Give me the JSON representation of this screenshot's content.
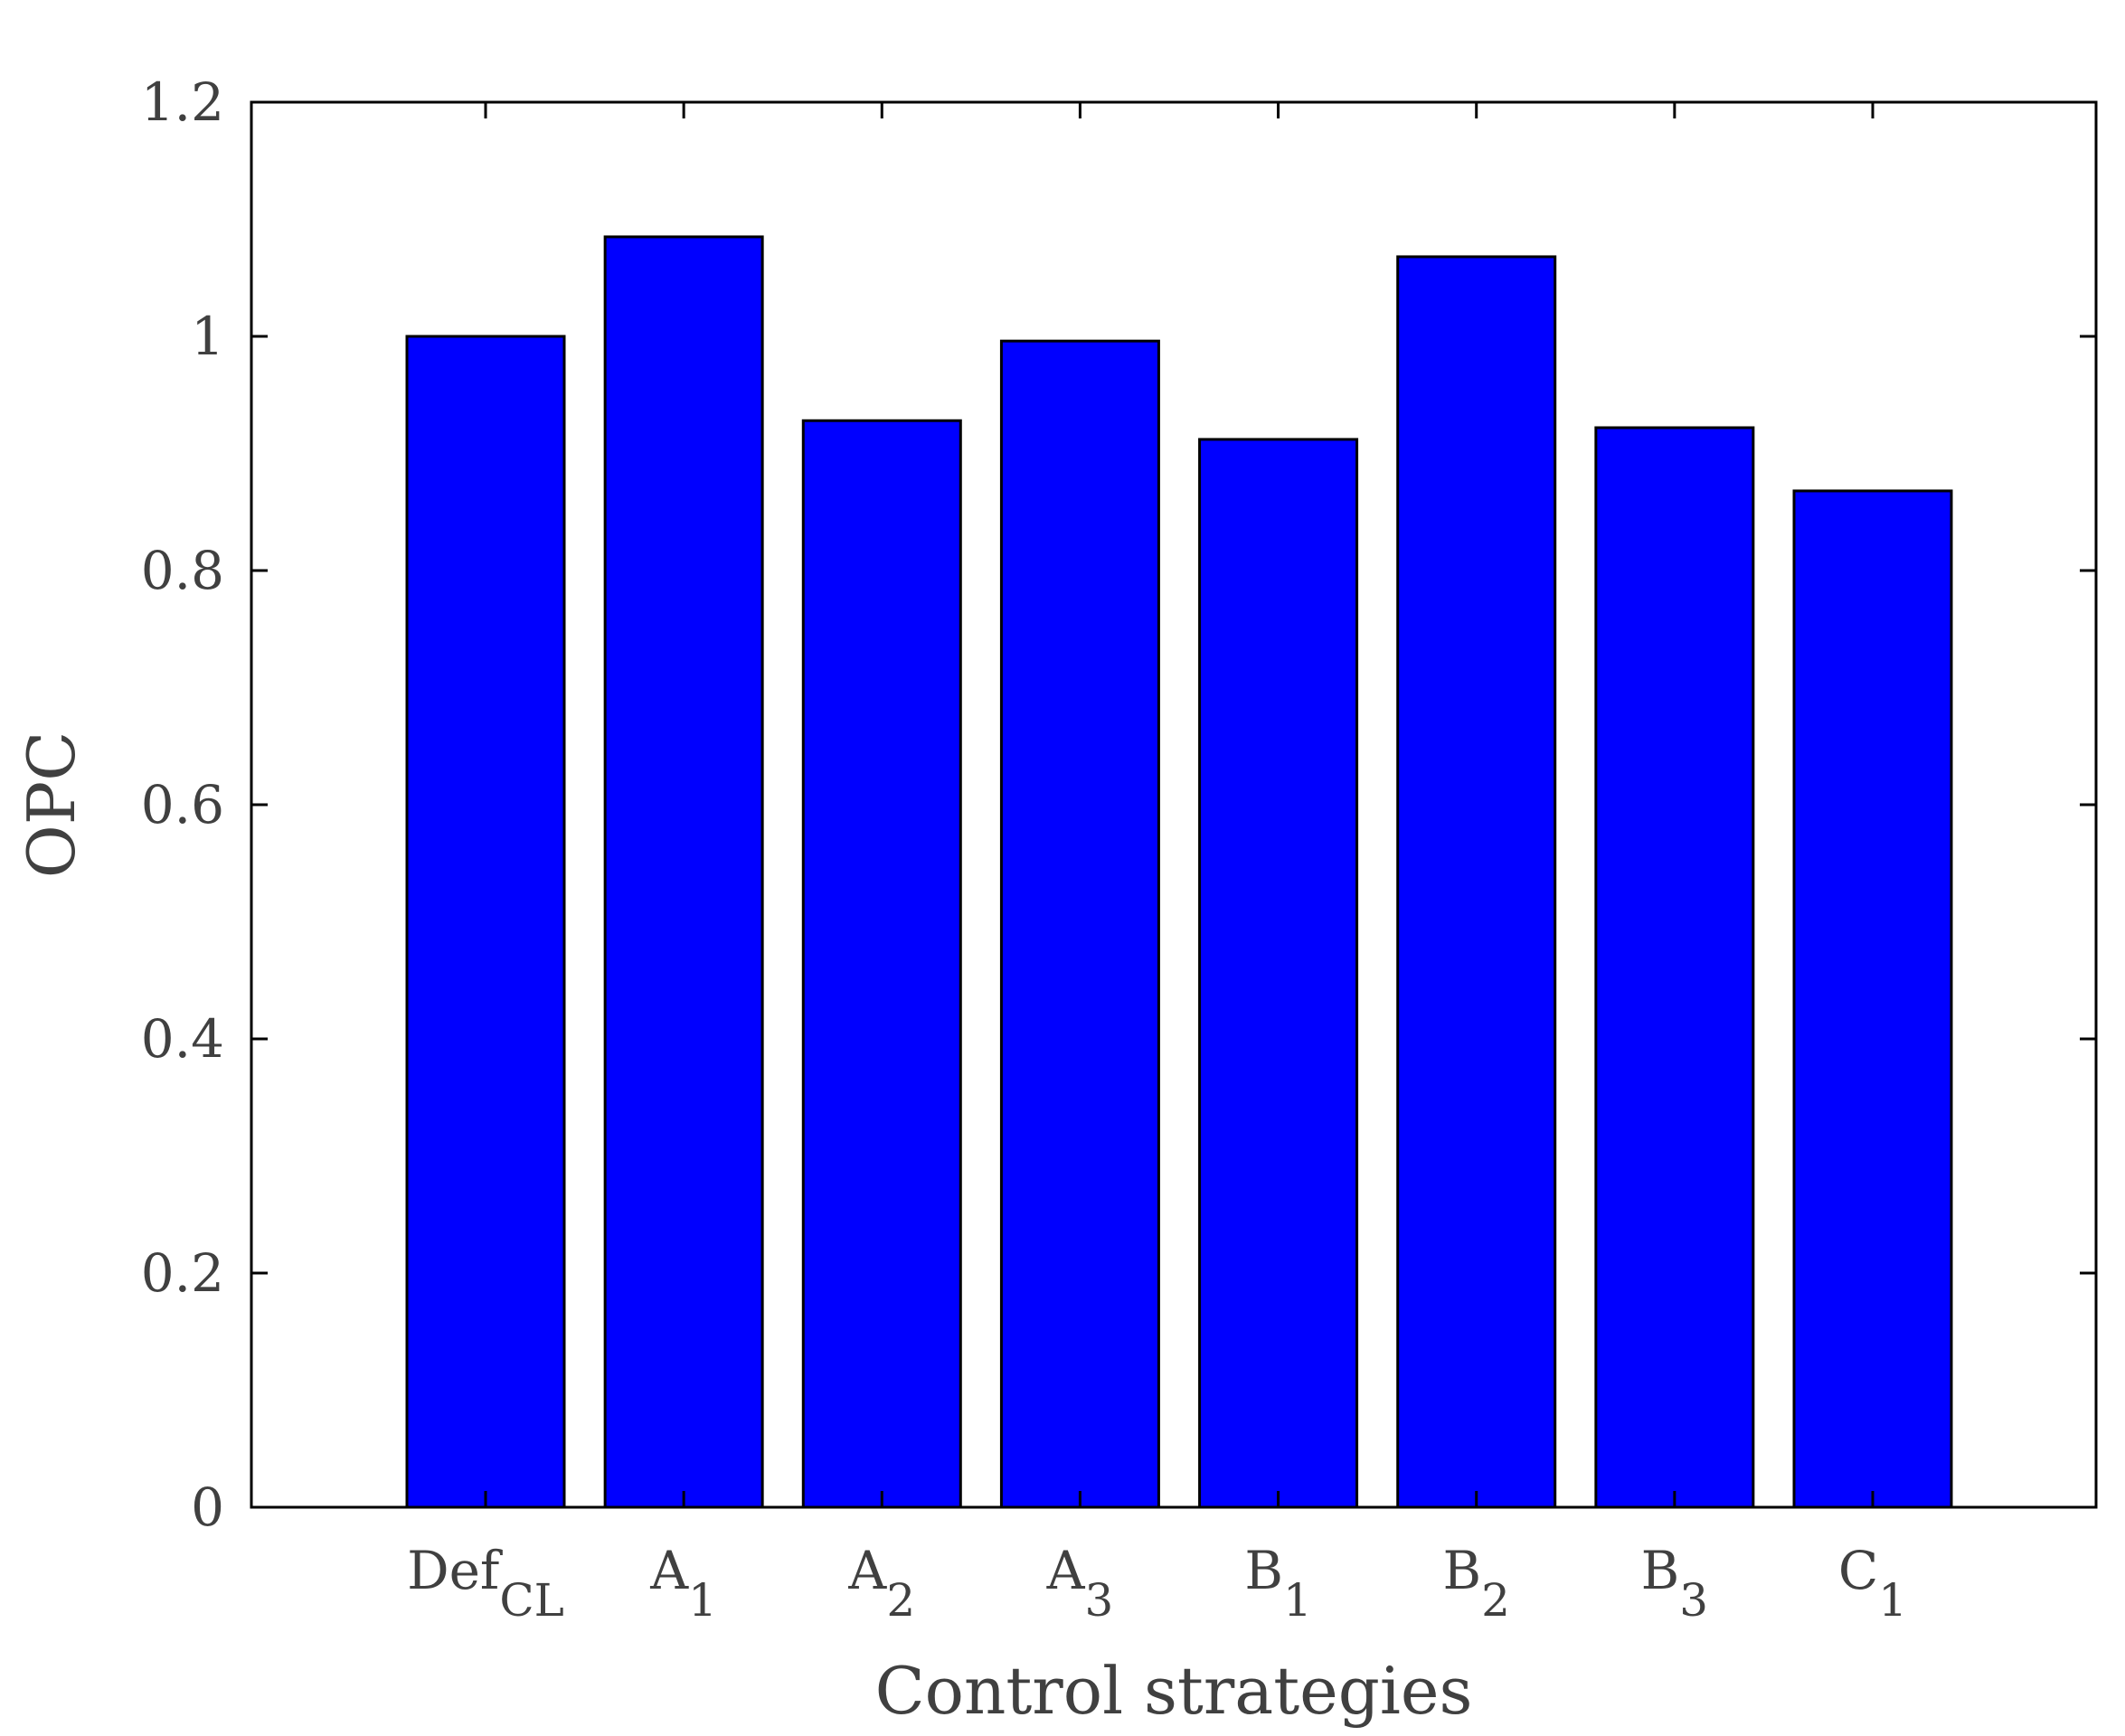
{
  "chart_data": {
    "type": "bar",
    "title": "",
    "xlabel": "Control strategies",
    "ylabel": "OPC",
    "ylim": [
      0,
      1.2
    ],
    "y_ticks": [
      0,
      0.2,
      0.4,
      0.6,
      0.8,
      1,
      1.2
    ],
    "y_tick_labels": [
      "0",
      "0.2",
      "0.4",
      "0.6",
      "0.8",
      "1",
      "1.2"
    ],
    "categories": [
      {
        "main": "Def",
        "sub": "CL"
      },
      {
        "main": "A",
        "sub": "1"
      },
      {
        "main": "A",
        "sub": "2"
      },
      {
        "main": "A",
        "sub": "3"
      },
      {
        "main": "B",
        "sub": "1"
      },
      {
        "main": "B",
        "sub": "2"
      },
      {
        "main": "B",
        "sub": "3"
      },
      {
        "main": "C",
        "sub": "1"
      }
    ],
    "values": [
      1.0,
      1.085,
      0.928,
      0.996,
      0.912,
      1.068,
      0.922,
      0.868
    ],
    "bar_color": "#0000FF",
    "bar_edge_color": "#000000",
    "axis_color": "#000000",
    "text_color": "#404040",
    "grid": false,
    "box": true
  }
}
